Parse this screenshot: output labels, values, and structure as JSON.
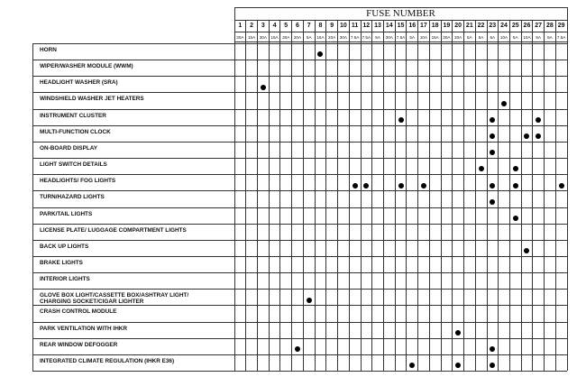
{
  "header": {
    "title": "FUSE NUMBER"
  },
  "fuses": [
    {
      "number": "1",
      "rating": "30A"
    },
    {
      "number": "2",
      "rating": "15A"
    },
    {
      "number": "3",
      "rating": "30A"
    },
    {
      "number": "4",
      "rating": "15A"
    },
    {
      "number": "5",
      "rating": "30A"
    },
    {
      "number": "6",
      "rating": "20A"
    },
    {
      "number": "7",
      "rating": "5A"
    },
    {
      "number": "8",
      "rating": "15A"
    },
    {
      "number": "9",
      "rating": "20A"
    },
    {
      "number": "10",
      "rating": "30A"
    },
    {
      "number": "11",
      "rating": "7.5A"
    },
    {
      "number": "12",
      "rating": "7.5A"
    },
    {
      "number": "13",
      "rating": "5A"
    },
    {
      "number": "14",
      "rating": "30A"
    },
    {
      "number": "15",
      "rating": "7.5A"
    },
    {
      "number": "16",
      "rating": "5A"
    },
    {
      "number": "17",
      "rating": "10A"
    },
    {
      "number": "18",
      "rating": "15A"
    },
    {
      "number": "19",
      "rating": "30A"
    },
    {
      "number": "20",
      "rating": "30A"
    },
    {
      "number": "21",
      "rating": "5A"
    },
    {
      "number": "22",
      "rating": "5A"
    },
    {
      "number": "23",
      "rating": "5A"
    },
    {
      "number": "24",
      "rating": "10A"
    },
    {
      "number": "25",
      "rating": "5A"
    },
    {
      "number": "26",
      "rating": "10A"
    },
    {
      "number": "27",
      "rating": "5A"
    },
    {
      "number": "28",
      "rating": "5A"
    },
    {
      "number": "29",
      "rating": "7.5A"
    }
  ],
  "circuits": [
    {
      "label": "HORN",
      "fuses": [
        8
      ]
    },
    {
      "label": "WIPER/WASHER MODULE (WWM)",
      "fuses": []
    },
    {
      "label": "HEADLIGHT WASHER (SRA)",
      "fuses": [
        3
      ]
    },
    {
      "label": "WINDSHIELD WASHER JET HEATERS",
      "fuses": [
        24
      ]
    },
    {
      "label": "INSTRUMENT CLUSTER",
      "fuses": [
        15,
        23,
        27
      ]
    },
    {
      "label": "MULTI-FUNCTION CLOCK",
      "fuses": [
        23,
        26,
        27
      ]
    },
    {
      "label": "ON-BOARD DISPLAY",
      "fuses": [
        23
      ]
    },
    {
      "label": "LIGHT SWITCH DETAILS",
      "fuses": [
        22,
        25
      ]
    },
    {
      "label": "HEADLIGHTS/ FOG LIGHTS",
      "fuses": [
        11,
        12,
        15,
        17,
        23,
        25,
        29
      ]
    },
    {
      "label": "TURN/HAZARD LIGHTS",
      "fuses": [
        23
      ]
    },
    {
      "label": "PARK/TAIL LIGHTS",
      "fuses": [
        25
      ]
    },
    {
      "label": "LICENSE PLATE/ LUGGAGE COMPARTMENT LIGHTS",
      "fuses": []
    },
    {
      "label": "BACK UP LIGHTS",
      "fuses": [
        26
      ]
    },
    {
      "label": "BRAKE LIGHTS",
      "fuses": []
    },
    {
      "label": "INTERIOR LIGHTS",
      "fuses": []
    },
    {
      "label": "GLOVE BOX LIGHT/CASSETTE BOX/ASHTRAY LIGHT/\nCHARGING SOCKET/CIGAR LIGHTER",
      "fuses": [
        7
      ]
    },
    {
      "label": "CRASH CONTROL MODULE",
      "fuses": []
    },
    {
      "label": "PARK VENTILATION WITH IHKR",
      "fuses": [
        20
      ]
    },
    {
      "label": "REAR WINDOW DEFOGGER",
      "fuses": [
        6,
        23
      ]
    },
    {
      "label": "INTEGRATED CLIMATE REGULATION (IHKR E36)",
      "fuses": [
        16,
        20,
        23
      ]
    }
  ]
}
